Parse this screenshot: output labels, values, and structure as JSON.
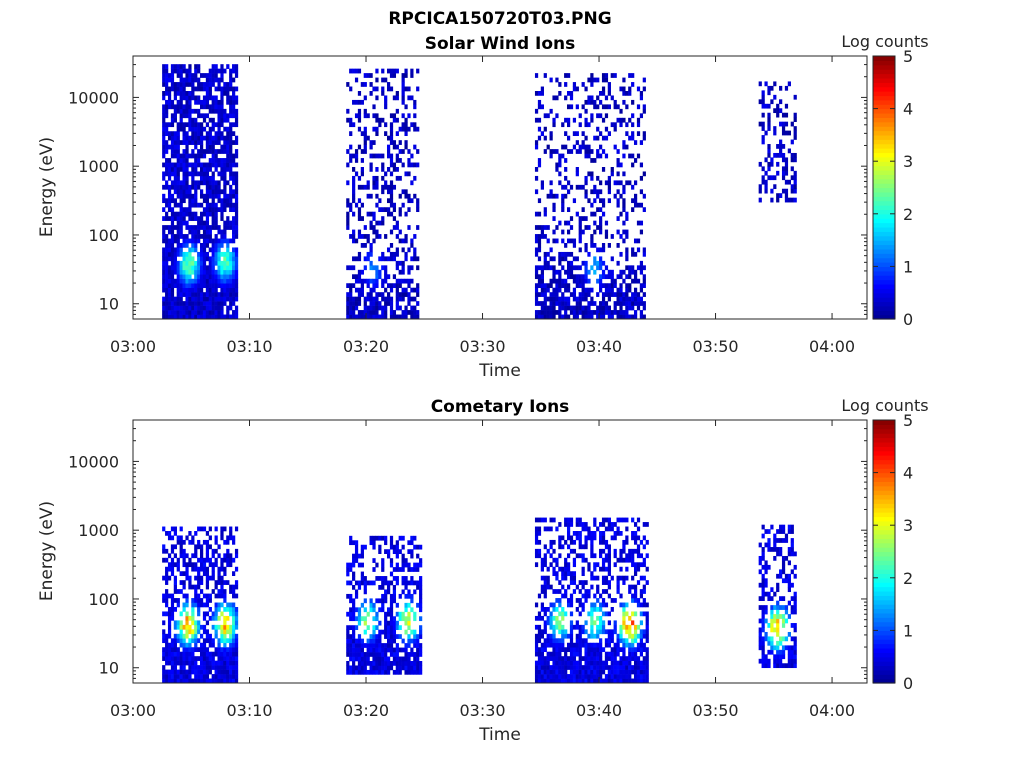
{
  "figure_title": "RPCICA150720T03.PNG",
  "colors": {
    "colormap": [
      "#00008f",
      "#0000ff",
      "#0080ff",
      "#00ffff",
      "#80ff80",
      "#ffff00",
      "#ff8000",
      "#ff0000",
      "#800000"
    ],
    "axis": "#262626"
  },
  "chart_data": [
    {
      "type": "heatmap",
      "title": "Solar Wind Ions",
      "xlabel": "Time",
      "ylabel": "Energy (eV)",
      "x_ticks": [
        "03:00",
        "03:10",
        "03:20",
        "03:30",
        "03:40",
        "03:50",
        "04:00"
      ],
      "x_range_minutes": [
        0,
        63
      ],
      "y_scale": "log",
      "y_ticks": [
        "10",
        "100",
        "1000",
        "10000"
      ],
      "y_range": [
        6,
        40000
      ],
      "colorbar": {
        "label": "Log counts",
        "min": 0,
        "max": 5,
        "ticks": [
          "0",
          "1",
          "2",
          "3",
          "4",
          "5"
        ]
      },
      "bursts": [
        {
          "t_start": 2.5,
          "t_end": 8.8,
          "e_min": 6,
          "e_max": 30000,
          "fill": 0.75,
          "base_log_counts": 0.1,
          "peaks": [
            {
              "t": 4.7,
              "e": 35,
              "log_counts": 2.6
            },
            {
              "t": 7.8,
              "e": 38,
              "log_counts": 2.4
            }
          ]
        },
        {
          "t_start": 18.3,
          "t_end": 24.5,
          "e_min": 6,
          "e_max": 25000,
          "fill": 0.3,
          "base_log_counts": 0.05,
          "peaks": [
            {
              "t": 20.5,
              "e": 30,
              "log_counts": 1.3
            }
          ]
        },
        {
          "t_start": 34.5,
          "t_end": 44.0,
          "e_min": 6,
          "e_max": 20000,
          "fill": 0.28,
          "base_log_counts": 0.05,
          "peaks": [
            {
              "t": 39.5,
              "e": 30,
              "log_counts": 1.5
            }
          ]
        },
        {
          "t_start": 53.7,
          "t_end": 56.8,
          "e_min": 300,
          "e_max": 15000,
          "fill": 0.3,
          "base_log_counts": 0.05,
          "peaks": []
        }
      ]
    },
    {
      "type": "heatmap",
      "title": "Cometary Ions",
      "xlabel": "Time",
      "ylabel": "Energy (eV)",
      "x_ticks": [
        "03:00",
        "03:10",
        "03:20",
        "03:30",
        "03:40",
        "03:50",
        "04:00"
      ],
      "x_range_minutes": [
        0,
        63
      ],
      "y_scale": "log",
      "y_ticks": [
        "10",
        "100",
        "1000",
        "10000"
      ],
      "y_range": [
        6,
        40000
      ],
      "colorbar": {
        "label": "Log counts",
        "min": 0,
        "max": 5,
        "ticks": [
          "0",
          "1",
          "2",
          "3",
          "4",
          "5"
        ]
      },
      "bursts": [
        {
          "t_start": 2.5,
          "t_end": 8.8,
          "e_min": 6,
          "e_max": 1100,
          "fill": 0.55,
          "base_log_counts": 0.2,
          "peaks": [
            {
              "t": 4.6,
              "e": 40,
              "log_counts": 3.8
            },
            {
              "t": 7.8,
              "e": 40,
              "log_counts": 3.6
            }
          ]
        },
        {
          "t_start": 18.3,
          "t_end": 24.8,
          "e_min": 8,
          "e_max": 800,
          "fill": 0.45,
          "base_log_counts": 0.2,
          "peaks": [
            {
              "t": 20.0,
              "e": 45,
              "log_counts": 2.7
            },
            {
              "t": 23.5,
              "e": 45,
              "log_counts": 3.2
            }
          ]
        },
        {
          "t_start": 34.5,
          "t_end": 44.2,
          "e_min": 6,
          "e_max": 1500,
          "fill": 0.45,
          "base_log_counts": 0.2,
          "peaks": [
            {
              "t": 36.5,
              "e": 45,
              "log_counts": 2.6
            },
            {
              "t": 39.5,
              "e": 45,
              "log_counts": 2.6
            },
            {
              "t": 42.5,
              "e": 40,
              "log_counts": 4.1
            }
          ]
        },
        {
          "t_start": 53.7,
          "t_end": 56.8,
          "e_min": 10,
          "e_max": 1100,
          "fill": 0.45,
          "base_log_counts": 0.2,
          "peaks": [
            {
              "t": 55.2,
              "e": 35,
              "log_counts": 3.8
            }
          ]
        }
      ]
    }
  ]
}
